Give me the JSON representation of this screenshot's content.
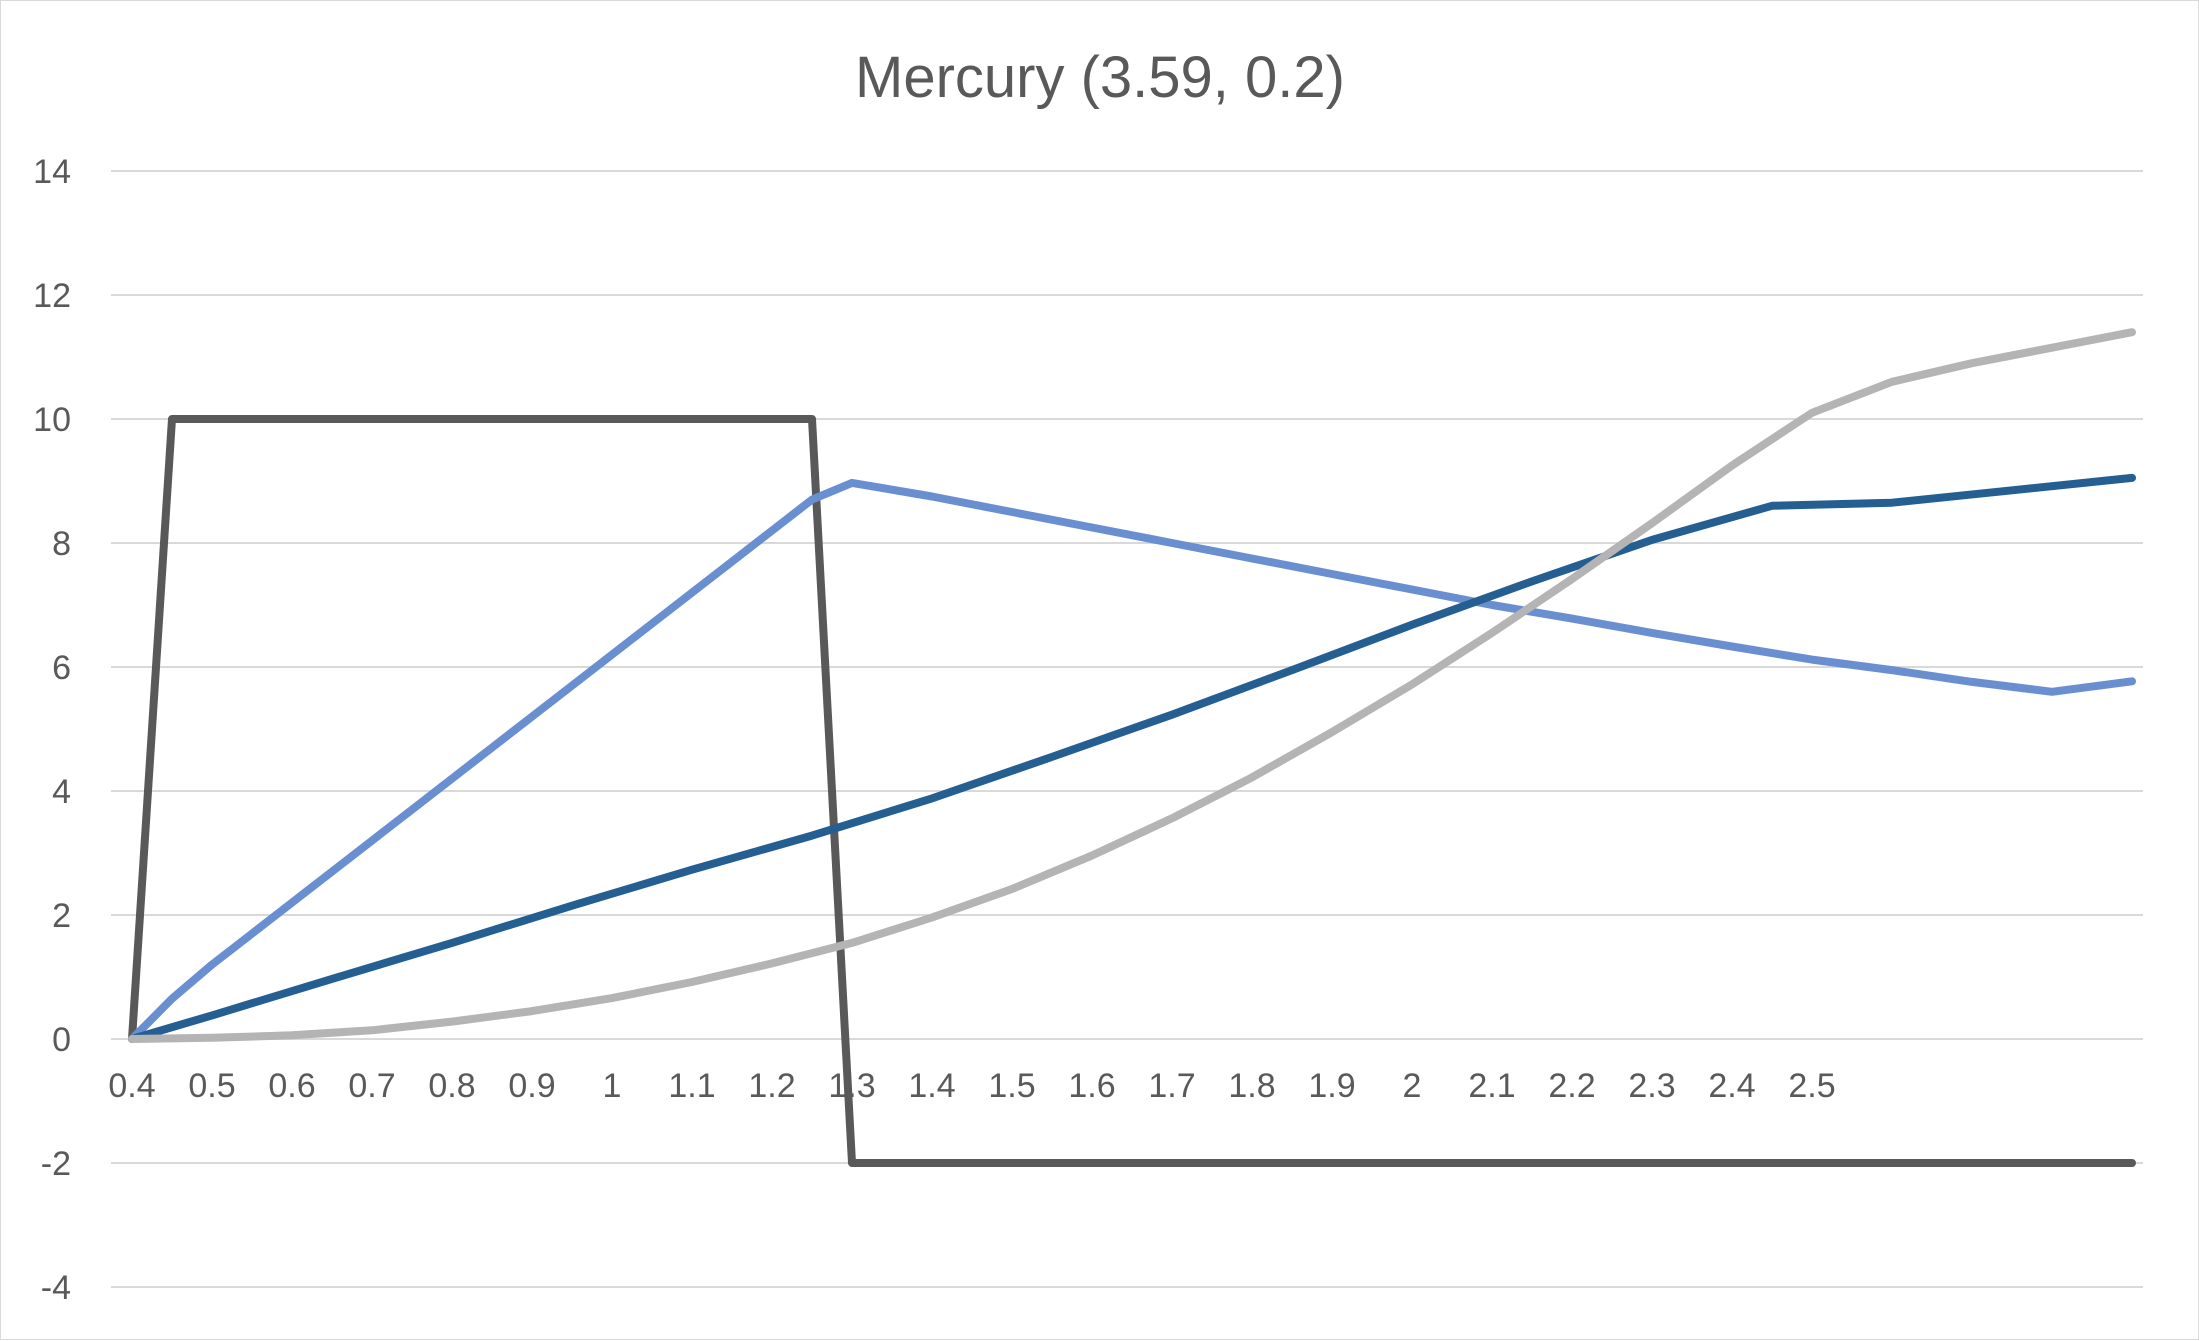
{
  "chart_data": {
    "type": "line",
    "title": "Mercury (3.59, 0.2)",
    "xlabel": "",
    "ylabel": "",
    "ylim": [
      -4,
      14
    ],
    "y_ticks": [
      14,
      12,
      10,
      8,
      6,
      4,
      2,
      0,
      -2,
      -4
    ],
    "x_tick_labels": [
      "0.4",
      "0.5",
      "0.6",
      "0.7",
      "0.8",
      "0.9",
      "1",
      "1.1",
      "1.2",
      "1.3",
      "1.4",
      "1.5",
      "1.6",
      "1.7",
      "1.8",
      "1.9",
      "2",
      "2.1",
      "2.2",
      "2.3",
      "2.4",
      "2.5"
    ],
    "x_tick_spacing_per_category": 2,
    "num_points": 51,
    "grid": true,
    "legend": "none",
    "series": [
      {
        "color": "#595959",
        "x": [
          0,
          1,
          17,
          18,
          50
        ],
        "values": [
          0,
          10,
          10,
          -2,
          -2
        ]
      },
      {
        "color": "#6a8fd0",
        "x": [
          0,
          1,
          2,
          3,
          4,
          5,
          6,
          7,
          8,
          9,
          10,
          11,
          12,
          13,
          14,
          15,
          16,
          17,
          18,
          20,
          22,
          24,
          26,
          28,
          30,
          32,
          34,
          36,
          38,
          40,
          42,
          44,
          46,
          48,
          50
        ],
        "values": [
          0,
          0.65,
          1.2,
          1.7,
          2.2,
          2.7,
          3.2,
          3.7,
          4.2,
          4.7,
          5.2,
          5.7,
          6.2,
          6.7,
          7.2,
          7.7,
          8.2,
          8.7,
          8.97,
          8.75,
          8.5,
          8.25,
          8.0,
          7.75,
          7.5,
          7.25,
          7.0,
          6.78,
          6.55,
          6.33,
          6.12,
          5.95,
          5.76,
          5.6,
          5.77
        ]
      },
      {
        "color": "#255e91",
        "x": [
          0,
          2,
          5,
          8,
          11,
          14,
          17,
          20,
          23,
          26,
          29,
          32,
          35,
          38,
          41,
          44,
          47,
          50
        ],
        "values": [
          0,
          0.38,
          0.97,
          1.55,
          2.15,
          2.73,
          3.28,
          3.88,
          4.55,
          5.23,
          5.95,
          6.68,
          7.38,
          8.05,
          8.6,
          8.65,
          8.85,
          9.05
        ]
      },
      {
        "color": "#b4b4b4",
        "x": [
          0,
          2,
          4,
          6,
          8,
          10,
          12,
          14,
          16,
          18,
          20,
          22,
          24,
          26,
          28,
          30,
          32,
          34,
          36,
          38,
          40,
          42,
          44,
          46,
          48,
          50
        ],
        "values": [
          0,
          0.02,
          0.06,
          0.14,
          0.28,
          0.45,
          0.66,
          0.92,
          1.22,
          1.55,
          1.96,
          2.42,
          2.96,
          3.56,
          4.22,
          4.95,
          5.72,
          6.55,
          7.42,
          8.32,
          9.25,
          10.1,
          10.6,
          10.9,
          11.15,
          11.4
        ]
      }
    ]
  }
}
